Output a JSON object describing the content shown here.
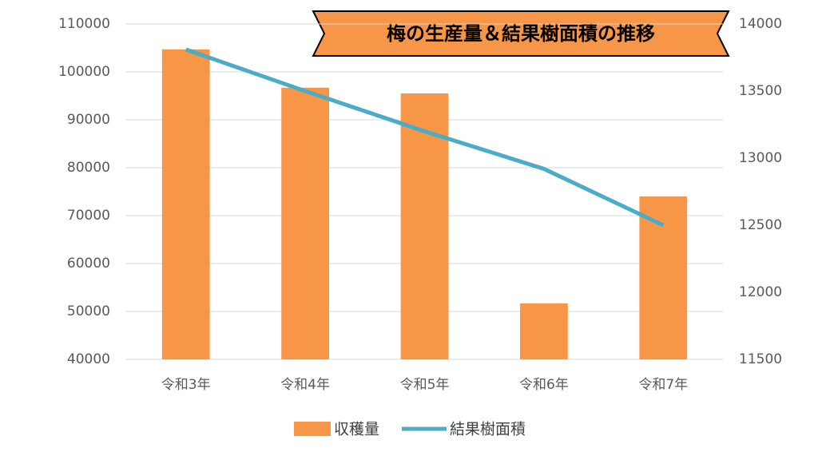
{
  "chart_data": {
    "type": "bar",
    "title": "梅の生産量＆結果樹面積の推移",
    "categories": [
      "令和3年",
      "令和4年",
      "令和5年",
      "令和6年",
      "令和7年"
    ],
    "series": [
      {
        "name": "収穫量",
        "color": "#f79646",
        "type": "bar",
        "values": [
          104700,
          96700,
          95500,
          51700,
          74000
        ]
      },
      {
        "name": "結果樹面積",
        "color": "#4bacc6",
        "type": "line",
        "axis": "y2",
        "values": [
          13810,
          13500,
          13200,
          12920,
          12500
        ]
      }
    ],
    "ylim": [
      40000,
      110000
    ],
    "yticks": [
      40000,
      50000,
      60000,
      70000,
      80000,
      90000,
      100000,
      110000
    ],
    "y2lim": [
      11500,
      14000
    ],
    "y2ticks": [
      11500,
      12000,
      12500,
      13000,
      13500,
      14000
    ],
    "grid": true,
    "legend": "bottom"
  }
}
